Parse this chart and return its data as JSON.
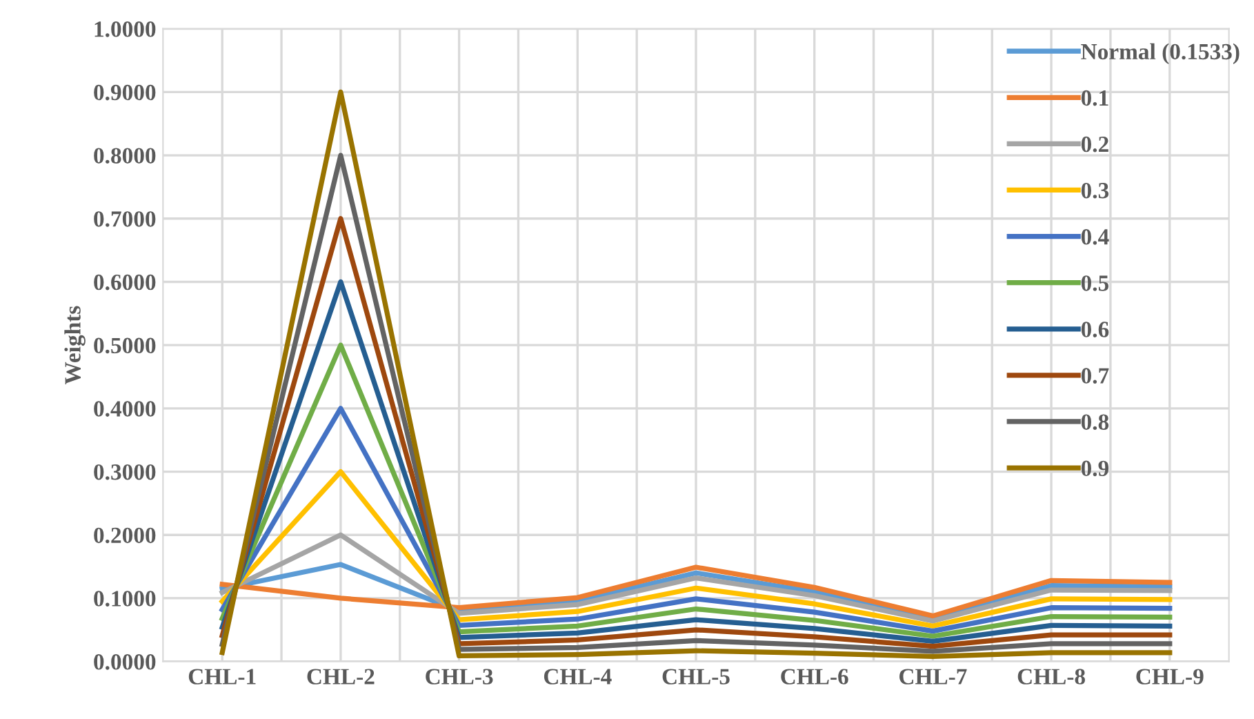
{
  "chart_data": {
    "type": "line",
    "ylabel": "Weights",
    "categories": [
      "CHL-1",
      "CHL-2",
      "CHL-3",
      "CHL-4",
      "CHL-5",
      "CHL-6",
      "CHL-7",
      "CHL-8",
      "CHL-9"
    ],
    "ylim": [
      0,
      1
    ],
    "yticks": [
      {
        "value": 0,
        "label": "0.0000"
      },
      {
        "value": 0.1,
        "label": "0.1000"
      },
      {
        "value": 0.2,
        "label": "0.2000"
      },
      {
        "value": 0.3,
        "label": "0.3000"
      },
      {
        "value": 0.4,
        "label": "0.4000"
      },
      {
        "value": 0.5,
        "label": "0.5000"
      },
      {
        "value": 0.6,
        "label": "0.6000"
      },
      {
        "value": 0.7,
        "label": "0.7000"
      },
      {
        "value": 0.8,
        "label": "0.8000"
      },
      {
        "value": 0.9,
        "label": "0.9000"
      },
      {
        "value": 1,
        "label": "1.0000"
      }
    ],
    "grid": true,
    "legend": "top right",
    "marker": "none",
    "line_style": "solid",
    "series": [
      {
        "name": "Normal (0.1533)",
        "color": "#5b9bd5",
        "values": [
          0.115,
          0.1533,
          0.08,
          0.095,
          0.14,
          0.11,
          0.068,
          0.12,
          0.118
        ]
      },
      {
        "name": "0.1",
        "color": "#ed7d31",
        "values": [
          0.122,
          0.1,
          0.085,
          0.101,
          0.149,
          0.117,
          0.072,
          0.128,
          0.125
        ]
      },
      {
        "name": "0.2",
        "color": "#a5a5a5",
        "values": [
          0.109,
          0.2,
          0.076,
          0.09,
          0.132,
          0.104,
          0.064,
          0.113,
          0.112
        ]
      },
      {
        "name": "0.3",
        "color": "#ffc000",
        "values": [
          0.095,
          0.3,
          0.066,
          0.079,
          0.116,
          0.091,
          0.056,
          0.099,
          0.098
        ]
      },
      {
        "name": "0.4",
        "color": "#4472c4",
        "values": [
          0.082,
          0.4,
          0.057,
          0.067,
          0.099,
          0.078,
          0.048,
          0.085,
          0.084
        ]
      },
      {
        "name": "0.5",
        "color": "#70ad47",
        "values": [
          0.068,
          0.5,
          0.047,
          0.056,
          0.083,
          0.065,
          0.04,
          0.071,
          0.07
        ]
      },
      {
        "name": "0.6",
        "color": "#255e91",
        "values": [
          0.054,
          0.6,
          0.038,
          0.045,
          0.066,
          0.052,
          0.032,
          0.057,
          0.056
        ]
      },
      {
        "name": "0.7",
        "color": "#9e480e",
        "values": [
          0.041,
          0.7,
          0.028,
          0.034,
          0.05,
          0.039,
          0.024,
          0.042,
          0.042
        ]
      },
      {
        "name": "0.8",
        "color": "#636363",
        "values": [
          0.027,
          0.8,
          0.019,
          0.022,
          0.033,
          0.026,
          0.016,
          0.028,
          0.028
        ]
      },
      {
        "name": "0.9",
        "color": "#997300",
        "values": [
          0.014,
          0.9,
          0.009,
          0.011,
          0.017,
          0.013,
          0.008,
          0.014,
          0.014
        ]
      }
    ]
  }
}
